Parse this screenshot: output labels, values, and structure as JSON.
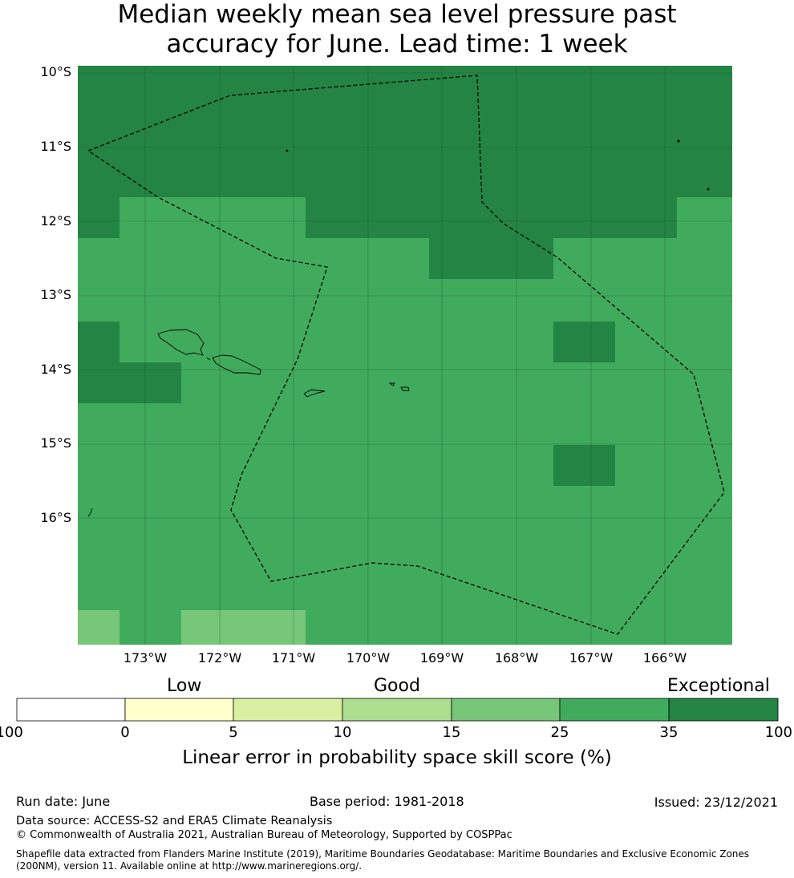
{
  "title": {
    "line1": "Median weekly mean sea level pressure past",
    "line2": "accuracy for June. Lead time: 1 week"
  },
  "map": {
    "lat_labels": [
      "10°S",
      "11°S",
      "12°S",
      "13°S",
      "14°S",
      "15°S",
      "16°S"
    ],
    "lon_labels": [
      "173°W",
      "172°W",
      "171°W",
      "170°W",
      "169°W",
      "168°W",
      "167°W",
      "166°W"
    ],
    "colors": {
      "exceptional": "#238443",
      "good_high": "#41ab5d",
      "good_mid": "#78c679",
      "border": "#000000"
    },
    "features": [
      "samoa-islands",
      "american-samoa-islands",
      "eez-boundary-dashed",
      "gridlines"
    ]
  },
  "legend": {
    "categories": [
      "Low",
      "Good",
      "Exceptional"
    ],
    "ticks": [
      "-100",
      "0",
      "5",
      "10",
      "15",
      "25",
      "35",
      "100"
    ],
    "colors": [
      "#ffffff",
      "#ffffcc",
      "#d9f0a3",
      "#addd8e",
      "#78c679",
      "#41ab5d",
      "#238443"
    ],
    "label": "Linear error in probability space skill score (%)"
  },
  "footer": {
    "run_date": "Run date: June",
    "base_period": "Base period: 1981-2018",
    "issued": "Issued: 23/12/2021",
    "data_source": "Data source: ACCESS-S2 and ERA5 Climate Reanalysis",
    "copyright": "© Commonwealth of Australia 2021, Australian Bureau of Meteorology, Supported by COSPPac",
    "shapefile_line1": "Shapefile data extracted from Flanders Marine Institute (2019), Maritime Boundaries Geodatabase: Maritime Boundaries and Exclusive Economic Zones",
    "shapefile_line2": "(200NM), version 11. Available online at http://www.marineregions.org/."
  }
}
